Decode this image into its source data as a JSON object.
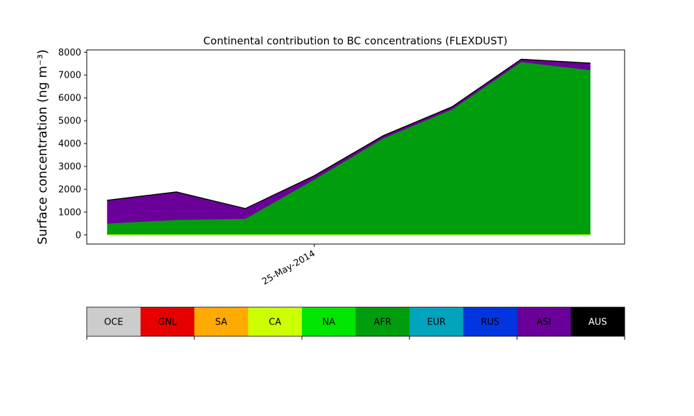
{
  "chart_data": {
    "type": "area",
    "stacked": true,
    "title": "Continental contribution to BC concentrations (FLEXDUST)",
    "xlabel": "",
    "ylabel": "Surface concentration (ng m⁻³)",
    "ylim": [
      -400,
      8100
    ],
    "yticks": [
      0,
      1000,
      2000,
      3000,
      4000,
      5000,
      6000,
      7000,
      8000
    ],
    "x": [
      0,
      1,
      2,
      3,
      4,
      5,
      6,
      7
    ],
    "xlim": [
      -0.3,
      7.5
    ],
    "xtick_labels": [
      {
        "x": 3,
        "label": "25-May-2014"
      }
    ],
    "grid": false,
    "series": [
      {
        "name": "OCE",
        "color": "#cccccc",
        "values": [
          0,
          0,
          0,
          0,
          0,
          0,
          0,
          0
        ]
      },
      {
        "name": "GNL",
        "color": "#e60000",
        "values": [
          0,
          0,
          0,
          0,
          0,
          0,
          0,
          0
        ]
      },
      {
        "name": "SA",
        "color": "#ffaa00",
        "values": [
          0,
          0,
          0,
          0,
          0,
          0,
          0,
          0
        ]
      },
      {
        "name": "CA",
        "color": "#ccff00",
        "values": [
          30,
          30,
          30,
          30,
          30,
          30,
          30,
          30
        ]
      },
      {
        "name": "NA",
        "color": "#00e600",
        "values": [
          10,
          10,
          10,
          10,
          10,
          10,
          10,
          10
        ]
      },
      {
        "name": "AFR",
        "color": "#009e0c",
        "values": [
          470,
          630,
          680,
          2400,
          4200,
          5470,
          7540,
          7190
        ]
      },
      {
        "name": "EUR",
        "color": "#00a4bd",
        "values": [
          0,
          0,
          0,
          0,
          0,
          0,
          0,
          0
        ]
      },
      {
        "name": "RUS",
        "color": "#0035e0",
        "values": [
          0,
          0,
          0,
          0,
          0,
          0,
          0,
          0
        ]
      },
      {
        "name": "ASI",
        "color": "#6a0099",
        "values": [
          1000,
          1200,
          430,
          140,
          90,
          90,
          100,
          280
        ]
      },
      {
        "name": "AUS",
        "color": "#000000",
        "values": [
          15,
          20,
          10,
          20,
          20,
          20,
          20,
          20
        ]
      }
    ],
    "legend": {
      "placement": "bottom",
      "style": "colorbar",
      "items": [
        "OCE",
        "GNL",
        "SA",
        "CA",
        "NA",
        "AFR",
        "EUR",
        "RUS",
        "ASI",
        "AUS"
      ],
      "text_colors": [
        "#000000",
        "#000000",
        "#000000",
        "#000000",
        "#000000",
        "#000000",
        "#000000",
        "#000000",
        "#000000",
        "#ffffff"
      ]
    }
  }
}
